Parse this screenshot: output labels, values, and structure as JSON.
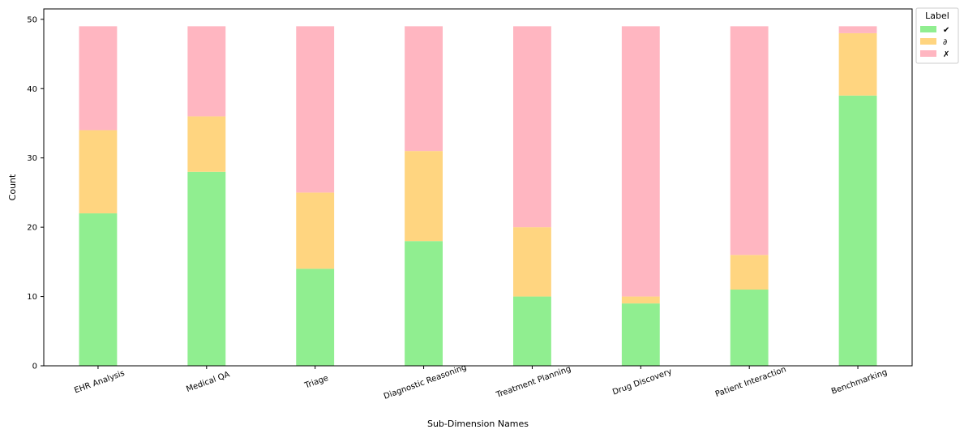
{
  "chart_data": {
    "type": "bar",
    "stacked": true,
    "title": "",
    "xlabel": "Sub-Dimension Names",
    "ylabel": "Count",
    "ylim": [
      0,
      51.5
    ],
    "yticks": [
      0,
      10,
      20,
      30,
      40,
      50
    ],
    "categories": [
      "EHR Analysis",
      "Medical QA",
      "Triage",
      "Diagnostic Reasoning",
      "Treatment Planning",
      "Drug Discovery",
      "Patient Interaction",
      "Benchmarking"
    ],
    "series": [
      {
        "name": "✔",
        "color": "#90ee90",
        "values": [
          22,
          28,
          14,
          18,
          10,
          9,
          11,
          39
        ]
      },
      {
        "name": "∂",
        "color": "#ffd580",
        "values": [
          12,
          8,
          11,
          13,
          10,
          1,
          5,
          9
        ]
      },
      {
        "name": "✗",
        "color": "#ffb6c1",
        "values": [
          15,
          13,
          24,
          18,
          29,
          39,
          33,
          1
        ]
      }
    ],
    "legend": {
      "title": "Label",
      "placement": "upper-right-outside"
    },
    "grid": false
  }
}
